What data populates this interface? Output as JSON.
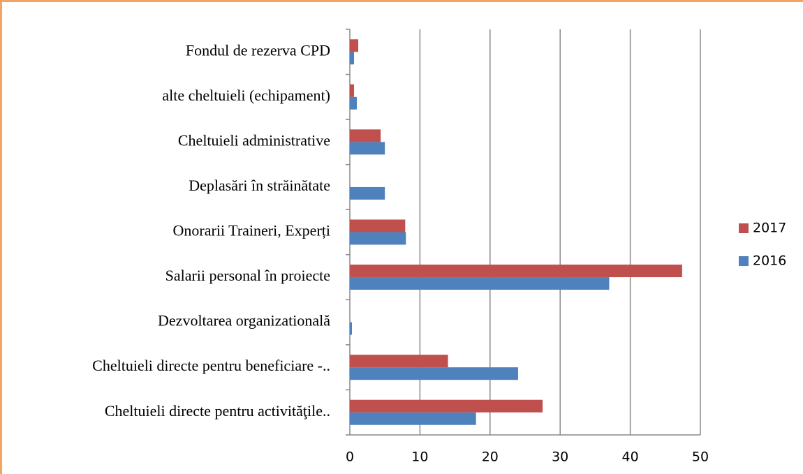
{
  "chart_data": {
    "type": "barh",
    "categories": [
      "Cheltuieli directe pentru activităţile..",
      "Cheltuieli directe pentru beneficiare  -..",
      "Dezvoltarea organizatională",
      "Salarii personal în proiecte",
      "Onorarii Traineri, Experți",
      "Deplasări în străinătate",
      "Cheltuieli administrative",
      "alte cheltuieli (echipament)",
      "Fondul de rezerva CPD"
    ],
    "series": [
      {
        "name": "2016",
        "color": "#4f81bd",
        "values": [
          18,
          24,
          0.3,
          37,
          8,
          5,
          5,
          1,
          0.6
        ]
      },
      {
        "name": "2017",
        "color": "#c0504d",
        "values": [
          27.5,
          14,
          0,
          47.4,
          7.9,
          0,
          4.4,
          0.6,
          1.2
        ]
      }
    ],
    "xlim": [
      0,
      50
    ],
    "xticks": [
      0,
      10,
      20,
      30,
      40,
      50
    ],
    "grid": true,
    "legend": "right"
  }
}
